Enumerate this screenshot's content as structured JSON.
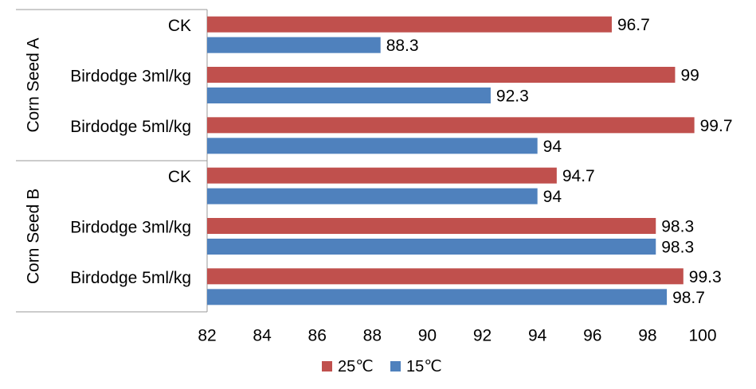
{
  "chart_data": {
    "type": "bar",
    "orientation": "horizontal",
    "groups": [
      {
        "name": "Corn Seed A",
        "categories": [
          "CK",
          "Birdodge 3ml/kg",
          "Birdodge 5ml/kg"
        ]
      },
      {
        "name": "Corn Seed B",
        "categories": [
          "CK",
          "Birdodge 3ml/kg",
          "Birdodge 5ml/kg"
        ]
      }
    ],
    "series": [
      {
        "name": "25℃",
        "color": "#c0504d",
        "values": [
          96.7,
          99,
          99.7,
          94.7,
          98.3,
          99.3
        ]
      },
      {
        "name": "15℃",
        "color": "#4f81bd",
        "values": [
          88.3,
          92.3,
          94,
          94,
          98.3,
          98.7
        ]
      }
    ],
    "data_label_text": [
      [
        "96.7",
        "99",
        "99.7",
        "94.7",
        "98.3",
        "99.3"
      ],
      [
        "88.3",
        "92.3",
        "94",
        "94",
        "98.3",
        "98.7"
      ]
    ],
    "xlim": [
      82,
      100
    ],
    "xticks": [
      82,
      84,
      86,
      88,
      90,
      92,
      94,
      96,
      98,
      100
    ],
    "grid": false,
    "legend_position": "bottom",
    "data_labels": true,
    "title": "",
    "xlabel": "",
    "ylabel": ""
  }
}
